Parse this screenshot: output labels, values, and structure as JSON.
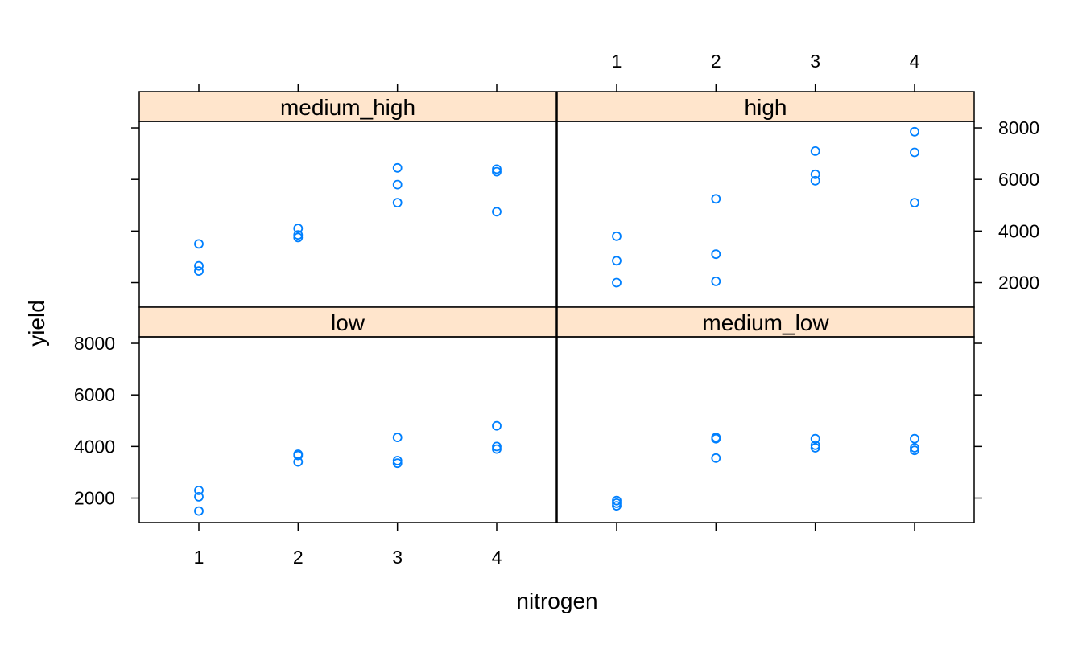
{
  "chart_data": {
    "type": "scatter",
    "layout": "lattice 2x2",
    "xlabel": "nitrogen",
    "ylabel": "yield",
    "x_ticks": [
      1,
      2,
      3,
      4
    ],
    "y_ticks": [
      2000,
      4000,
      6000,
      8000
    ],
    "xlim": [
      0.4,
      4.6
    ],
    "ylim": [
      1050,
      8250
    ],
    "point_color": "#0080ff",
    "strip_color": "#ffe5cc",
    "panels": [
      {
        "name": "medium_high",
        "x": [
          1,
          1,
          1,
          2,
          2,
          2,
          3,
          3,
          3,
          4,
          4,
          4
        ],
        "y": [
          3500,
          2650,
          2450,
          4100,
          3850,
          3750,
          6450,
          5800,
          5100,
          6400,
          6300,
          4750
        ]
      },
      {
        "name": "high",
        "x": [
          1,
          1,
          1,
          2,
          2,
          2,
          3,
          3,
          3,
          4,
          4,
          4
        ],
        "y": [
          3800,
          2850,
          2000,
          5250,
          3100,
          2050,
          7100,
          6200,
          5950,
          7850,
          7050,
          5100
        ]
      },
      {
        "name": "low",
        "x": [
          1,
          1,
          1,
          2,
          2,
          2,
          3,
          3,
          3,
          4,
          4,
          4
        ],
        "y": [
          2300,
          2050,
          1500,
          3700,
          3650,
          3400,
          4350,
          3450,
          3350,
          4800,
          4000,
          3900
        ]
      },
      {
        "name": "medium_low",
        "x": [
          1,
          1,
          1,
          2,
          2,
          2,
          3,
          3,
          3,
          4,
          4,
          4
        ],
        "y": [
          1900,
          1800,
          1700,
          4350,
          3550,
          4300,
          4050,
          3950,
          4300,
          3950,
          3850,
          4300
        ]
      }
    ]
  }
}
